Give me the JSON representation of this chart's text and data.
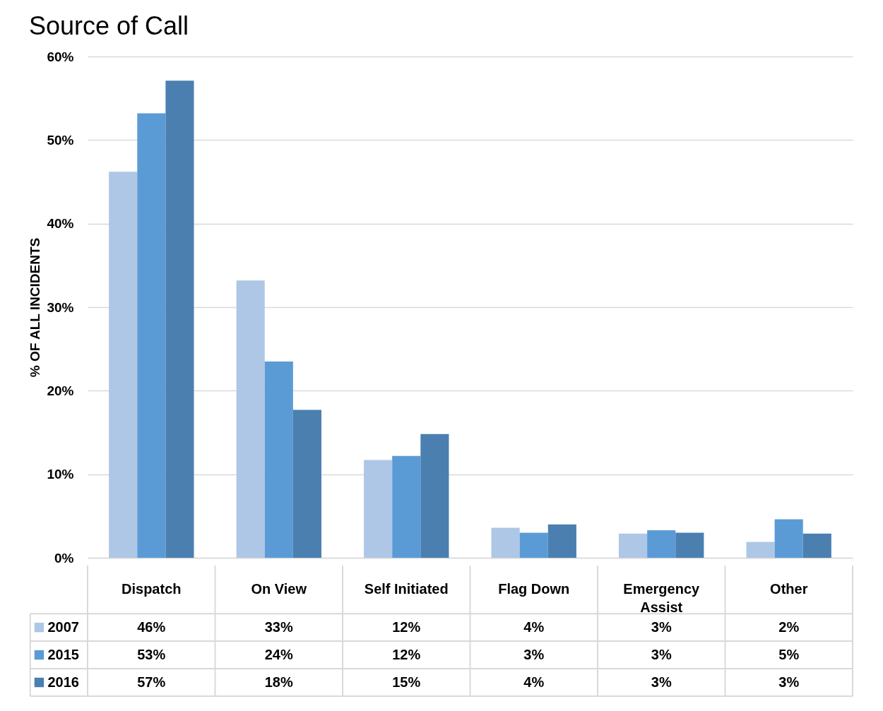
{
  "chart_data": {
    "type": "bar",
    "title": "Source of Call",
    "ylabel": "% OF ALL INCIDENTS",
    "categories": [
      "Dispatch",
      "On View",
      "Self Initiated",
      "Flag Down",
      "Emergency Assist",
      "Other"
    ],
    "series": [
      {
        "name": "2007",
        "color": "#aec7e6",
        "values": [
          46.2,
          33.2,
          11.7,
          3.6,
          2.9,
          1.9
        ],
        "value_labels": [
          "46%",
          "33%",
          "12%",
          "4%",
          "3%",
          "2%"
        ]
      },
      {
        "name": "2015",
        "color": "#5b9bd5",
        "values": [
          53.2,
          23.5,
          12.2,
          3.0,
          3.3,
          4.6
        ],
        "value_labels": [
          "53%",
          "24%",
          "12%",
          "3%",
          "3%",
          "5%"
        ]
      },
      {
        "name": "2016",
        "color": "#4a7fb0",
        "values": [
          57.1,
          17.7,
          14.8,
          4.0,
          3.0,
          2.9
        ],
        "value_labels": [
          "57%",
          "18%",
          "15%",
          "4%",
          "3%",
          "3%"
        ]
      }
    ],
    "ylim": [
      0,
      60
    ],
    "yticks": [
      {
        "value": 0,
        "label": "0%"
      },
      {
        "value": 10,
        "label": "10%"
      },
      {
        "value": 20,
        "label": "20%"
      },
      {
        "value": 30,
        "label": "30%"
      },
      {
        "value": 40,
        "label": "40%"
      },
      {
        "value": 50,
        "label": "50%"
      },
      {
        "value": 60,
        "label": "60%"
      }
    ],
    "grid": "y",
    "legend": "bottom"
  }
}
